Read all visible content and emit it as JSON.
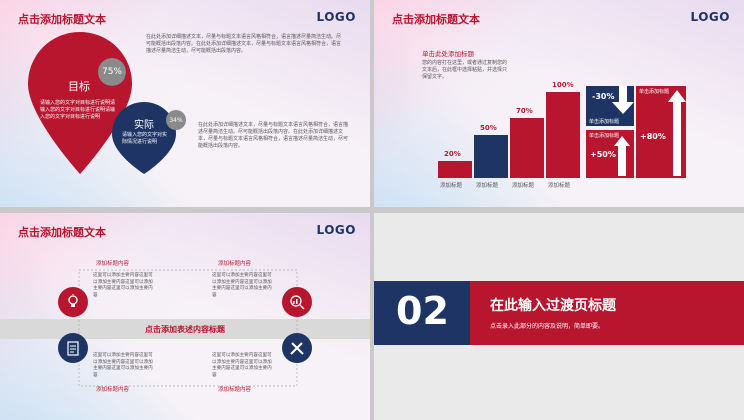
{
  "colors": {
    "red": "#b8162f",
    "navy": "#1e3464",
    "gray": "#888888"
  },
  "slide1": {
    "title": "点击添加标题文本",
    "logo": "LOGO",
    "goal_label": "目标",
    "goal_pct": "75%",
    "goal_text": "请输入您的文字对目标进行说明请输入您的文字对目标进行说明请输入您的文字对目标进行说明",
    "actual_label": "实际",
    "actual_pct": "34%",
    "actual_text": "请输入您的文字对实际情况进行说明",
    "para1": "在此处添加详细描述文本，尽量与标题文本语言风格相符合，语言描述尽量简洁生动。尽可能概括出段落内容。在此处添加详细描述文本，尽量与标题文本语言风格相符合，语言描述尽量简洁生动，尽可能概括出段落内容。",
    "para2": "在此处添加详细描述文本，尽量与标题文本语言风格相符合，语言描述尽量简洁生动。尽可能概括出段落内容。在此处添加详细描述文本，尽量与标题文本语言风格相符合，语言描述尽量简洁生动，尽可能概括出段落内容。"
  },
  "slide2": {
    "title": "点击添加标题文本",
    "logo": "LOGO",
    "sub_title": "单击此处添加标题",
    "sub_text": "您的内容打在这里，或者通过复制您的文本后，在此框中选择粘贴，并选择只保留文字。",
    "bars": [
      {
        "pct": "20%",
        "value": 20,
        "color": "#b8162f",
        "cat": "添加标题"
      },
      {
        "pct": "50%",
        "value": 50,
        "color": "#1e3464",
        "cat": "添加标题"
      },
      {
        "pct": "70%",
        "value": 70,
        "color": "#b8162f",
        "cat": "添加标题"
      },
      {
        "pct": "100%",
        "value": 100,
        "color": "#b8162f",
        "cat": "添加标题"
      }
    ],
    "box1_pct": "-30%",
    "box1_label": "单击添加标题",
    "box2_label": "单击添加标题",
    "box3_label": "单击添加标题",
    "box3_pct": "+80%",
    "box4_label": "单击添加标题",
    "box4_pct": "+50%"
  },
  "slide3": {
    "title": "点击添加标题文本",
    "logo": "LOGO",
    "center_title": "点击添加表述内容标题",
    "sections": [
      {
        "label": "添加标题内容",
        "text": "这里可以添加主要内容这里可以添加主要内容这里可以添加主要内容这里可以添加主要内容"
      },
      {
        "label": "添加标题内容",
        "text": "这里可以添加主要内容这里可以添加主要内容这里可以添加主要内容这里可以添加主要内容"
      },
      {
        "label": "添加标题内容",
        "text": "这里可以添加主要内容这里可以添加主要内容这里可以添加主要内容这里可以添加主要内容"
      },
      {
        "label": "添加标题内容",
        "text": "这里可以添加主要内容这里可以添加主要内容这里可以添加主要内容这里可以添加主要内容"
      }
    ],
    "icons": [
      "lightbulb-icon",
      "search-chart-icon",
      "clipboard-icon",
      "tools-icon"
    ]
  },
  "slide4": {
    "number": "02",
    "heading": "在此输入过渡页标题",
    "subtext": "点击录入此部分的内容及说明，简单即要。"
  }
}
